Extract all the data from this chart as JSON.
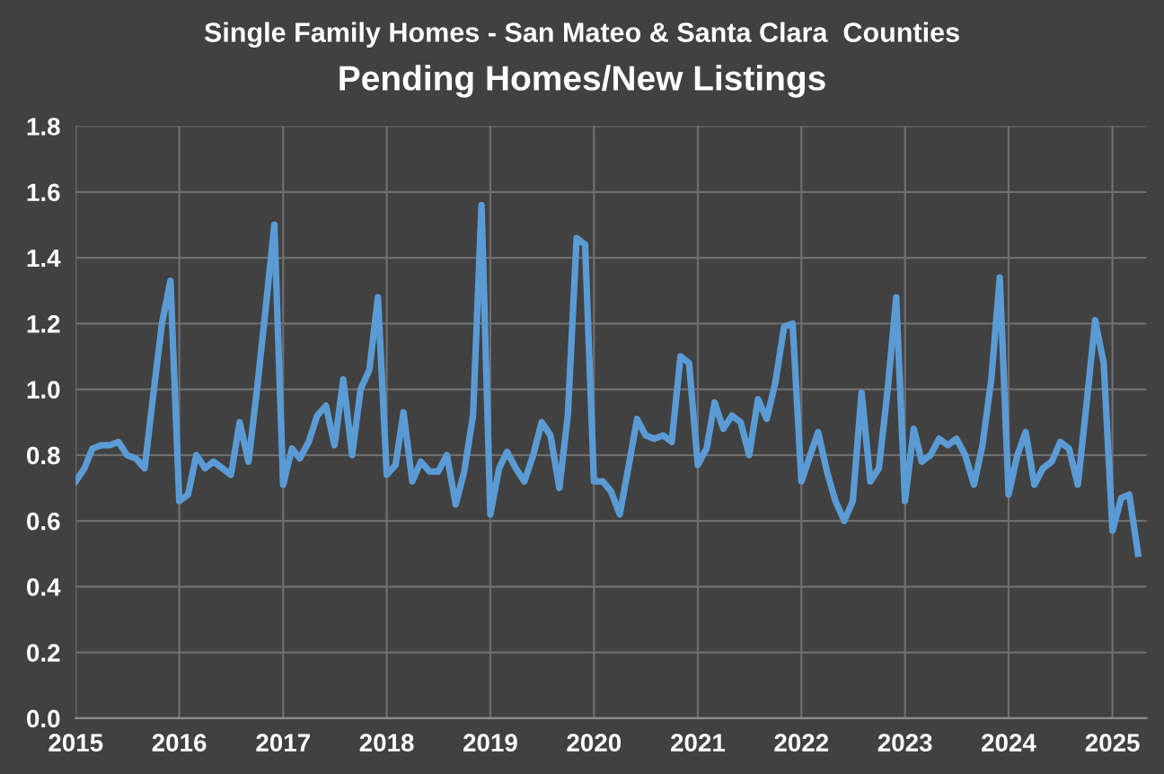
{
  "chart_data": {
    "type": "line",
    "title": "Single Family Homes - San Mateo & Santa Clara  Counties",
    "subtitle": "Pending Homes/New Listings",
    "x": [
      "2015-01",
      "2015-02",
      "2015-03",
      "2015-04",
      "2015-05",
      "2015-06",
      "2015-07",
      "2015-08",
      "2015-09",
      "2015-10",
      "2015-11",
      "2015-12",
      "2016-01",
      "2016-02",
      "2016-03",
      "2016-04",
      "2016-05",
      "2016-06",
      "2016-07",
      "2016-08",
      "2016-09",
      "2016-10",
      "2016-11",
      "2016-12",
      "2017-01",
      "2017-02",
      "2017-03",
      "2017-04",
      "2017-05",
      "2017-06",
      "2017-07",
      "2017-08",
      "2017-09",
      "2017-10",
      "2017-11",
      "2017-12",
      "2018-01",
      "2018-02",
      "2018-03",
      "2018-04",
      "2018-05",
      "2018-06",
      "2018-07",
      "2018-08",
      "2018-09",
      "2018-10",
      "2018-11",
      "2018-12",
      "2019-01",
      "2019-02",
      "2019-03",
      "2019-04",
      "2019-05",
      "2019-06",
      "2019-07",
      "2019-08",
      "2019-09",
      "2019-10",
      "2019-11",
      "2019-12",
      "2020-01",
      "2020-02",
      "2020-03",
      "2020-04",
      "2020-05",
      "2020-06",
      "2020-07",
      "2020-08",
      "2020-09",
      "2020-10",
      "2020-11",
      "2020-12",
      "2021-01",
      "2021-02",
      "2021-03",
      "2021-04",
      "2021-05",
      "2021-06",
      "2021-07",
      "2021-08",
      "2021-09",
      "2021-10",
      "2021-11",
      "2021-12",
      "2022-01",
      "2022-02",
      "2022-03",
      "2022-04",
      "2022-05",
      "2022-06",
      "2022-07",
      "2022-08",
      "2022-09",
      "2022-10",
      "2022-11",
      "2022-12",
      "2023-01",
      "2023-02",
      "2023-03",
      "2023-04",
      "2023-05",
      "2023-06",
      "2023-07",
      "2023-08",
      "2023-09",
      "2023-10",
      "2023-11",
      "2023-12",
      "2024-01",
      "2024-02",
      "2024-03",
      "2024-04",
      "2024-05",
      "2024-06",
      "2024-07",
      "2024-08",
      "2024-09",
      "2024-10",
      "2024-11",
      "2024-12",
      "2025-01",
      "2025-02",
      "2025-03",
      "2025-04"
    ],
    "series": [
      {
        "color": "#5b9bd5",
        "values": [
          0.72,
          0.76,
          0.82,
          0.83,
          0.83,
          0.84,
          0.8,
          0.79,
          0.76,
          0.98,
          1.2,
          1.33,
          0.66,
          0.68,
          0.8,
          0.76,
          0.78,
          0.76,
          0.74,
          0.9,
          0.78,
          1.0,
          1.25,
          1.5,
          0.71,
          0.82,
          0.79,
          0.84,
          0.92,
          0.95,
          0.83,
          1.03,
          0.8,
          1.0,
          1.06,
          1.28,
          0.74,
          0.77,
          0.93,
          0.72,
          0.78,
          0.75,
          0.75,
          0.8,
          0.65,
          0.75,
          0.92,
          1.56,
          0.62,
          0.76,
          0.81,
          0.76,
          0.72,
          0.8,
          0.9,
          0.86,
          0.7,
          0.92,
          1.46,
          1.44,
          0.72,
          0.72,
          0.69,
          0.62,
          0.76,
          0.91,
          0.86,
          0.85,
          0.86,
          0.84,
          1.1,
          1.08,
          0.77,
          0.82,
          0.96,
          0.88,
          0.92,
          0.9,
          0.8,
          0.97,
          0.91,
          1.02,
          1.19,
          1.2,
          0.72,
          0.8,
          0.87,
          0.75,
          0.66,
          0.6,
          0.66,
          0.99,
          0.72,
          0.76,
          1.0,
          1.28,
          0.66,
          0.88,
          0.78,
          0.8,
          0.85,
          0.83,
          0.85,
          0.8,
          0.71,
          0.83,
          1.03,
          1.34,
          0.68,
          0.8,
          0.87,
          0.71,
          0.76,
          0.78,
          0.84,
          0.82,
          0.71,
          0.95,
          1.21,
          1.08,
          0.57,
          0.67,
          0.68,
          0.5
        ]
      }
    ],
    "xlim": [
      "2015-01-01",
      "2025-05-01"
    ],
    "xticks": [
      {
        "value": "2015-01-01",
        "label": "2015"
      },
      {
        "value": "2016-01-01",
        "label": "2016"
      },
      {
        "value": "2017-01-01",
        "label": "2017"
      },
      {
        "value": "2018-01-01",
        "label": "2018"
      },
      {
        "value": "2019-01-01",
        "label": "2019"
      },
      {
        "value": "2020-01-01",
        "label": "2020"
      },
      {
        "value": "2021-01-01",
        "label": "2021"
      },
      {
        "value": "2022-01-01",
        "label": "2022"
      },
      {
        "value": "2023-01-01",
        "label": "2023"
      },
      {
        "value": "2024-01-01",
        "label": "2024"
      },
      {
        "value": "2025-01-01",
        "label": "2025"
      }
    ],
    "ylim": [
      0,
      1.8
    ],
    "yticks": [
      {
        "value": 0,
        "label": "0.0"
      },
      {
        "value": 0.2,
        "label": "0.2"
      },
      {
        "value": 0.4,
        "label": "0.4"
      },
      {
        "value": 0.6,
        "label": "0.6"
      },
      {
        "value": 0.8,
        "label": "0.8"
      },
      {
        "value": 1.0,
        "label": "1.0"
      },
      {
        "value": 1.2,
        "label": "1.2"
      },
      {
        "value": 1.4,
        "label": "1.4"
      },
      {
        "value": 1.6,
        "label": "1.6"
      },
      {
        "value": 1.8,
        "label": "1.8"
      }
    ],
    "grid": true,
    "marker": "none",
    "line_style": "solid"
  }
}
